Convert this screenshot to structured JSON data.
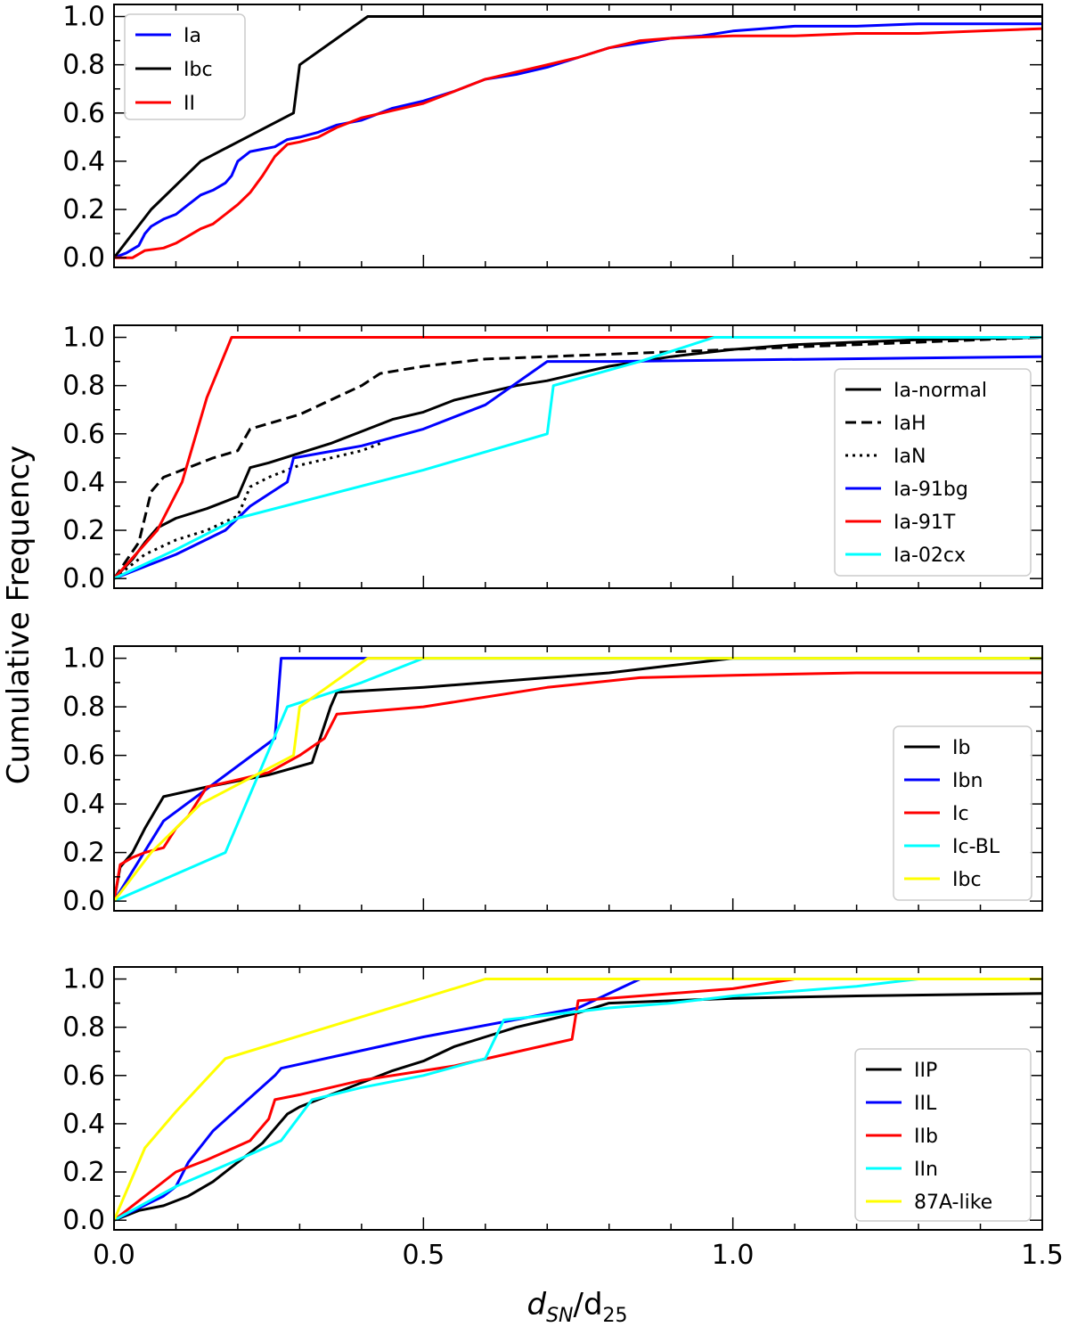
{
  "chart_data": {
    "type": "line",
    "xlabel_main": "d",
    "xlabel_sub1": "SN",
    "xlabel_mid": "/d",
    "xlabel_sub2": "25",
    "ylabel": "Cumulative Frequency",
    "xlim": [
      0,
      1.5
    ],
    "ylim": [
      0,
      1.0
    ],
    "xticks": [
      {
        "v": 0.0,
        "label": "0.0"
      },
      {
        "v": 0.5,
        "label": "0.5"
      },
      {
        "v": 1.0,
        "label": "1.0"
      },
      {
        "v": 1.5,
        "label": "1.5"
      }
    ],
    "yticks": [
      {
        "v": 0.0,
        "label": "0.0"
      },
      {
        "v": 0.2,
        "label": "0.2"
      },
      {
        "v": 0.4,
        "label": "0.4"
      },
      {
        "v": 0.6,
        "label": "0.6"
      },
      {
        "v": 0.8,
        "label": "0.8"
      },
      {
        "v": 1.0,
        "label": "1.0"
      }
    ],
    "panels": [
      {
        "legend_position": "top-left",
        "series": [
          {
            "name": "Ia",
            "color": "#0000ff",
            "dash": "solid",
            "x": [
              0,
              0.02,
              0.04,
              0.05,
              0.06,
              0.08,
              0.1,
              0.12,
              0.14,
              0.16,
              0.18,
              0.19,
              0.2,
              0.22,
              0.24,
              0.26,
              0.28,
              0.3,
              0.33,
              0.36,
              0.4,
              0.43,
              0.45,
              0.5,
              0.55,
              0.6,
              0.65,
              0.7,
              0.75,
              0.8,
              0.85,
              0.9,
              0.95,
              1.0,
              1.05,
              1.1,
              1.2,
              1.3,
              1.4,
              1.5
            ],
            "y": [
              0,
              0.02,
              0.05,
              0.1,
              0.13,
              0.16,
              0.18,
              0.22,
              0.26,
              0.28,
              0.31,
              0.34,
              0.4,
              0.44,
              0.45,
              0.46,
              0.49,
              0.5,
              0.52,
              0.55,
              0.57,
              0.6,
              0.62,
              0.65,
              0.69,
              0.74,
              0.76,
              0.79,
              0.83,
              0.87,
              0.89,
              0.91,
              0.92,
              0.94,
              0.95,
              0.96,
              0.96,
              0.97,
              0.97,
              0.97
            ]
          },
          {
            "name": "Ibc",
            "color": "#000000",
            "dash": "solid",
            "x": [
              0,
              0.06,
              0.14,
              0.2,
              0.29,
              0.29,
              0.3,
              0.41,
              1.5
            ],
            "y": [
              0,
              0.2,
              0.4,
              0.48,
              0.6,
              0.6,
              0.8,
              1.0,
              1.0
            ]
          },
          {
            "name": "II",
            "color": "#ff0000",
            "dash": "solid",
            "x": [
              0,
              0.03,
              0.05,
              0.08,
              0.1,
              0.12,
              0.14,
              0.16,
              0.18,
              0.2,
              0.22,
              0.24,
              0.26,
              0.28,
              0.3,
              0.33,
              0.36,
              0.4,
              0.45,
              0.5,
              0.55,
              0.6,
              0.65,
              0.7,
              0.75,
              0.8,
              0.85,
              0.9,
              1.0,
              1.1,
              1.2,
              1.3,
              1.4,
              1.5
            ],
            "y": [
              0,
              0.0,
              0.03,
              0.04,
              0.06,
              0.09,
              0.12,
              0.14,
              0.18,
              0.22,
              0.27,
              0.34,
              0.42,
              0.47,
              0.48,
              0.5,
              0.54,
              0.58,
              0.61,
              0.64,
              0.69,
              0.74,
              0.77,
              0.8,
              0.83,
              0.87,
              0.9,
              0.91,
              0.92,
              0.92,
              0.93,
              0.93,
              0.94,
              0.95
            ]
          }
        ]
      },
      {
        "legend_position": "center-right",
        "series": [
          {
            "name": "Ia-normal",
            "color": "#000000",
            "dash": "solid",
            "x": [
              0,
              0.03,
              0.05,
              0.07,
              0.1,
              0.15,
              0.2,
              0.22,
              0.25,
              0.3,
              0.35,
              0.4,
              0.45,
              0.5,
              0.55,
              0.6,
              0.65,
              0.7,
              0.75,
              0.8,
              0.9,
              1.0,
              1.1,
              1.2,
              1.3,
              1.5
            ],
            "y": [
              0,
              0.08,
              0.15,
              0.21,
              0.25,
              0.29,
              0.34,
              0.46,
              0.48,
              0.52,
              0.56,
              0.61,
              0.66,
              0.69,
              0.74,
              0.77,
              0.8,
              0.82,
              0.85,
              0.88,
              0.92,
              0.95,
              0.97,
              0.98,
              0.99,
              1.0
            ]
          },
          {
            "name": "IaH",
            "color": "#000000",
            "dash": "dashed",
            "x": [
              0,
              0.04,
              0.06,
              0.08,
              0.12,
              0.16,
              0.2,
              0.22,
              0.3,
              0.35,
              0.4,
              0.43,
              0.5,
              0.6,
              0.7,
              0.8,
              1.0,
              1.2,
              1.5
            ],
            "y": [
              0,
              0.15,
              0.36,
              0.42,
              0.46,
              0.5,
              0.53,
              0.62,
              0.68,
              0.74,
              0.8,
              0.85,
              0.88,
              0.91,
              0.92,
              0.93,
              0.95,
              0.97,
              1.0
            ]
          },
          {
            "name": "IaN",
            "color": "#000000",
            "dash": "dotted",
            "x": [
              0,
              0.05,
              0.1,
              0.15,
              0.2,
              0.22,
              0.25,
              0.3,
              0.35,
              0.4,
              0.43
            ],
            "y": [
              0,
              0.1,
              0.16,
              0.2,
              0.26,
              0.38,
              0.42,
              0.47,
              0.5,
              0.53,
              0.56
            ]
          },
          {
            "name": "Ia-91bg",
            "color": "#0000ff",
            "dash": "solid",
            "x": [
              0,
              0.1,
              0.18,
              0.22,
              0.28,
              0.29,
              0.4,
              0.5,
              0.6,
              0.7,
              0.8,
              1.5
            ],
            "y": [
              0,
              0.1,
              0.2,
              0.3,
              0.4,
              0.5,
              0.55,
              0.62,
              0.72,
              0.9,
              0.9,
              0.92
            ]
          },
          {
            "name": "Ia-91T",
            "color": "#ff0000",
            "dash": "solid",
            "x": [
              0,
              0.07,
              0.11,
              0.15,
              0.19,
              1.5
            ],
            "y": [
              0,
              0.2,
              0.4,
              0.75,
              1.0,
              1.0
            ]
          },
          {
            "name": "Ia-02cx",
            "color": "#00ffff",
            "dash": "solid",
            "x": [
              0,
              0.1,
              0.2,
              0.35,
              0.5,
              0.7,
              0.71,
              0.85,
              0.97,
              1.5
            ],
            "y": [
              0,
              0.12,
              0.25,
              0.35,
              0.45,
              0.6,
              0.8,
              0.9,
              1.0,
              1.0
            ]
          }
        ]
      },
      {
        "legend_position": "lower-right",
        "series": [
          {
            "name": "Ib",
            "color": "#000000",
            "dash": "solid",
            "x": [
              0,
              0.01,
              0.03,
              0.05,
              0.08,
              0.15,
              0.25,
              0.32,
              0.35,
              0.36,
              0.5,
              0.6,
              0.7,
              0.8,
              0.9,
              1.0,
              1.5
            ],
            "y": [
              0,
              0.14,
              0.2,
              0.3,
              0.43,
              0.47,
              0.52,
              0.57,
              0.8,
              0.86,
              0.88,
              0.9,
              0.92,
              0.94,
              0.97,
              1.0,
              1.0
            ]
          },
          {
            "name": "Ibn",
            "color": "#0000ff",
            "dash": "solid",
            "x": [
              0,
              0.08,
              0.26,
              0.27,
              0.41,
              1.5
            ],
            "y": [
              0,
              0.33,
              0.67,
              1.0,
              1.0,
              1.0
            ]
          },
          {
            "name": "Ic",
            "color": "#ff0000",
            "dash": "solid",
            "x": [
              0,
              0.01,
              0.03,
              0.05,
              0.08,
              0.1,
              0.12,
              0.15,
              0.2,
              0.25,
              0.3,
              0.34,
              0.36,
              0.5,
              0.7,
              0.85,
              1.0,
              1.2,
              1.5
            ],
            "y": [
              0,
              0.15,
              0.18,
              0.2,
              0.22,
              0.3,
              0.35,
              0.47,
              0.5,
              0.53,
              0.6,
              0.67,
              0.77,
              0.8,
              0.88,
              0.92,
              0.93,
              0.94,
              0.94
            ]
          },
          {
            "name": "Ic-BL",
            "color": "#00ffff",
            "dash": "solid",
            "x": [
              0,
              0.18,
              0.28,
              0.4,
              0.5,
              1.5
            ],
            "y": [
              0,
              0.2,
              0.8,
              0.9,
              1.0,
              1.0
            ]
          },
          {
            "name": "Ibc",
            "color": "#ffff00",
            "dash": "solid",
            "x": [
              0,
              0.06,
              0.14,
              0.29,
              0.3,
              0.41,
              1.5
            ],
            "y": [
              0,
              0.2,
              0.4,
              0.6,
              0.8,
              1.0,
              1.0
            ]
          }
        ]
      },
      {
        "legend_position": "lower-right",
        "series": [
          {
            "name": "IIP",
            "color": "#000000",
            "dash": "solid",
            "x": [
              0,
              0.02,
              0.04,
              0.08,
              0.12,
              0.16,
              0.2,
              0.24,
              0.26,
              0.28,
              0.3,
              0.35,
              0.4,
              0.45,
              0.5,
              0.55,
              0.6,
              0.65,
              0.7,
              0.75,
              0.8,
              0.9,
              1.0,
              1.2,
              1.5
            ],
            "y": [
              0,
              0.02,
              0.04,
              0.06,
              0.1,
              0.16,
              0.24,
              0.32,
              0.38,
              0.44,
              0.47,
              0.52,
              0.57,
              0.62,
              0.66,
              0.72,
              0.76,
              0.8,
              0.83,
              0.86,
              0.9,
              0.91,
              0.92,
              0.93,
              0.94
            ]
          },
          {
            "name": "IIL",
            "color": "#0000ff",
            "dash": "solid",
            "x": [
              0,
              0.08,
              0.1,
              0.12,
              0.16,
              0.26,
              0.27,
              0.5,
              0.75,
              0.85,
              1.5
            ],
            "y": [
              0,
              0.1,
              0.14,
              0.24,
              0.37,
              0.6,
              0.63,
              0.76,
              0.88,
              1.0,
              1.0
            ]
          },
          {
            "name": "IIb",
            "color": "#ff0000",
            "dash": "solid",
            "x": [
              0,
              0.1,
              0.15,
              0.22,
              0.25,
              0.26,
              0.3,
              0.4,
              0.55,
              0.74,
              0.75,
              1.0,
              1.1,
              1.5
            ],
            "y": [
              0,
              0.2,
              0.25,
              0.33,
              0.42,
              0.5,
              0.52,
              0.58,
              0.64,
              0.75,
              0.91,
              0.96,
              1.0,
              1.0
            ]
          },
          {
            "name": "IIn",
            "color": "#00ffff",
            "dash": "solid",
            "x": [
              0,
              0.1,
              0.2,
              0.27,
              0.32,
              0.4,
              0.5,
              0.6,
              0.63,
              0.7,
              0.8,
              0.9,
              1.0,
              1.2,
              1.3,
              1.5
            ],
            "y": [
              0,
              0.14,
              0.25,
              0.33,
              0.5,
              0.55,
              0.6,
              0.67,
              0.83,
              0.85,
              0.88,
              0.9,
              0.93,
              0.97,
              1.0,
              1.0
            ]
          },
          {
            "name": "87A-like",
            "color": "#ffff00",
            "dash": "solid",
            "x": [
              0,
              0.05,
              0.1,
              0.18,
              0.6,
              1.5
            ],
            "y": [
              0,
              0.3,
              0.45,
              0.67,
              1.0,
              1.0
            ]
          }
        ]
      }
    ]
  }
}
